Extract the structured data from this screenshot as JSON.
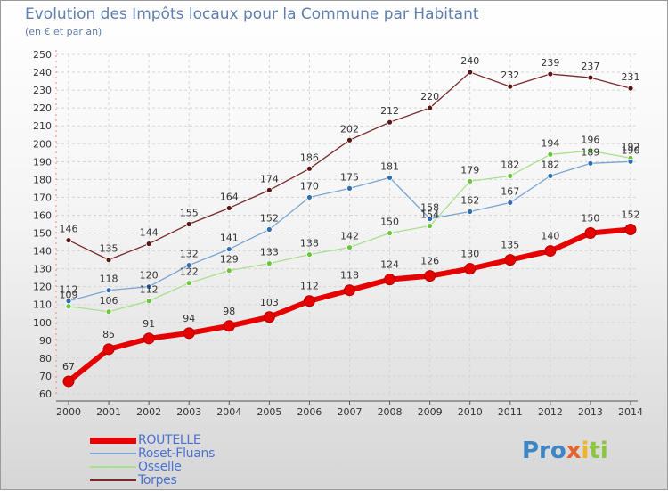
{
  "title": "Evolution des Impôts locaux pour la Commune par Habitant",
  "subtitle": "(en € et par an)",
  "logo": [
    "Pro",
    "x",
    "i",
    "ti"
  ],
  "chart_data": {
    "type": "line",
    "x": [
      2000,
      2001,
      2002,
      2003,
      2004,
      2005,
      2006,
      2007,
      2008,
      2009,
      2010,
      2011,
      2012,
      2013,
      2014
    ],
    "ylim": [
      60,
      250
    ],
    "yticks": [
      60,
      70,
      80,
      90,
      100,
      110,
      120,
      130,
      140,
      150,
      160,
      170,
      180,
      190,
      200,
      210,
      220,
      230,
      240,
      250
    ],
    "grid": true,
    "legend_position": "bottom-left",
    "series": [
      {
        "name": "ROUTELLE",
        "color": "#e60000",
        "dot": "#e60000",
        "values": [
          67,
          85,
          91,
          94,
          98,
          103,
          112,
          118,
          124,
          126,
          130,
          135,
          140,
          150,
          152
        ],
        "labels": [
          "67",
          "85",
          "91",
          "94",
          "98",
          "103",
          "112",
          "118",
          "124",
          "126",
          "130",
          "135",
          "140",
          "150",
          "152"
        ]
      },
      {
        "name": "Roset-Fluans",
        "color": "#7aa6d6",
        "dot": "#2f6fb0",
        "values": [
          112,
          118,
          120,
          132,
          141,
          152,
          170,
          175,
          181,
          158,
          162,
          167,
          182,
          189,
          190
        ],
        "labels": [
          "112",
          "118",
          "120",
          "132",
          "141",
          "152",
          "170",
          "175",
          "181",
          "158",
          "162",
          "167",
          "182",
          "189",
          "190"
        ]
      },
      {
        "name": "Osselle",
        "color": "#a8e08c",
        "dot": "#6cc63c",
        "values": [
          109,
          106,
          112,
          122,
          129,
          133,
          138,
          142,
          150,
          154,
          179,
          182,
          194,
          196,
          192
        ],
        "labels": [
          "109",
          "106",
          "112",
          "122",
          "129",
          "133",
          "138",
          "142",
          "150",
          "154",
          "179",
          "182",
          "194",
          "196",
          "192"
        ]
      },
      {
        "name": "Torpes",
        "color": "#7a2a2a",
        "dot": "#5a1515",
        "values": [
          146,
          135,
          144,
          155,
          164,
          174,
          186,
          202,
          212,
          220,
          240,
          232,
          239,
          237,
          231
        ],
        "labels": [
          "146",
          "135",
          "144",
          "155",
          "164",
          "174",
          "186",
          "202",
          "212",
          "220",
          "240",
          "232",
          "239",
          "237",
          "231"
        ]
      }
    ]
  }
}
